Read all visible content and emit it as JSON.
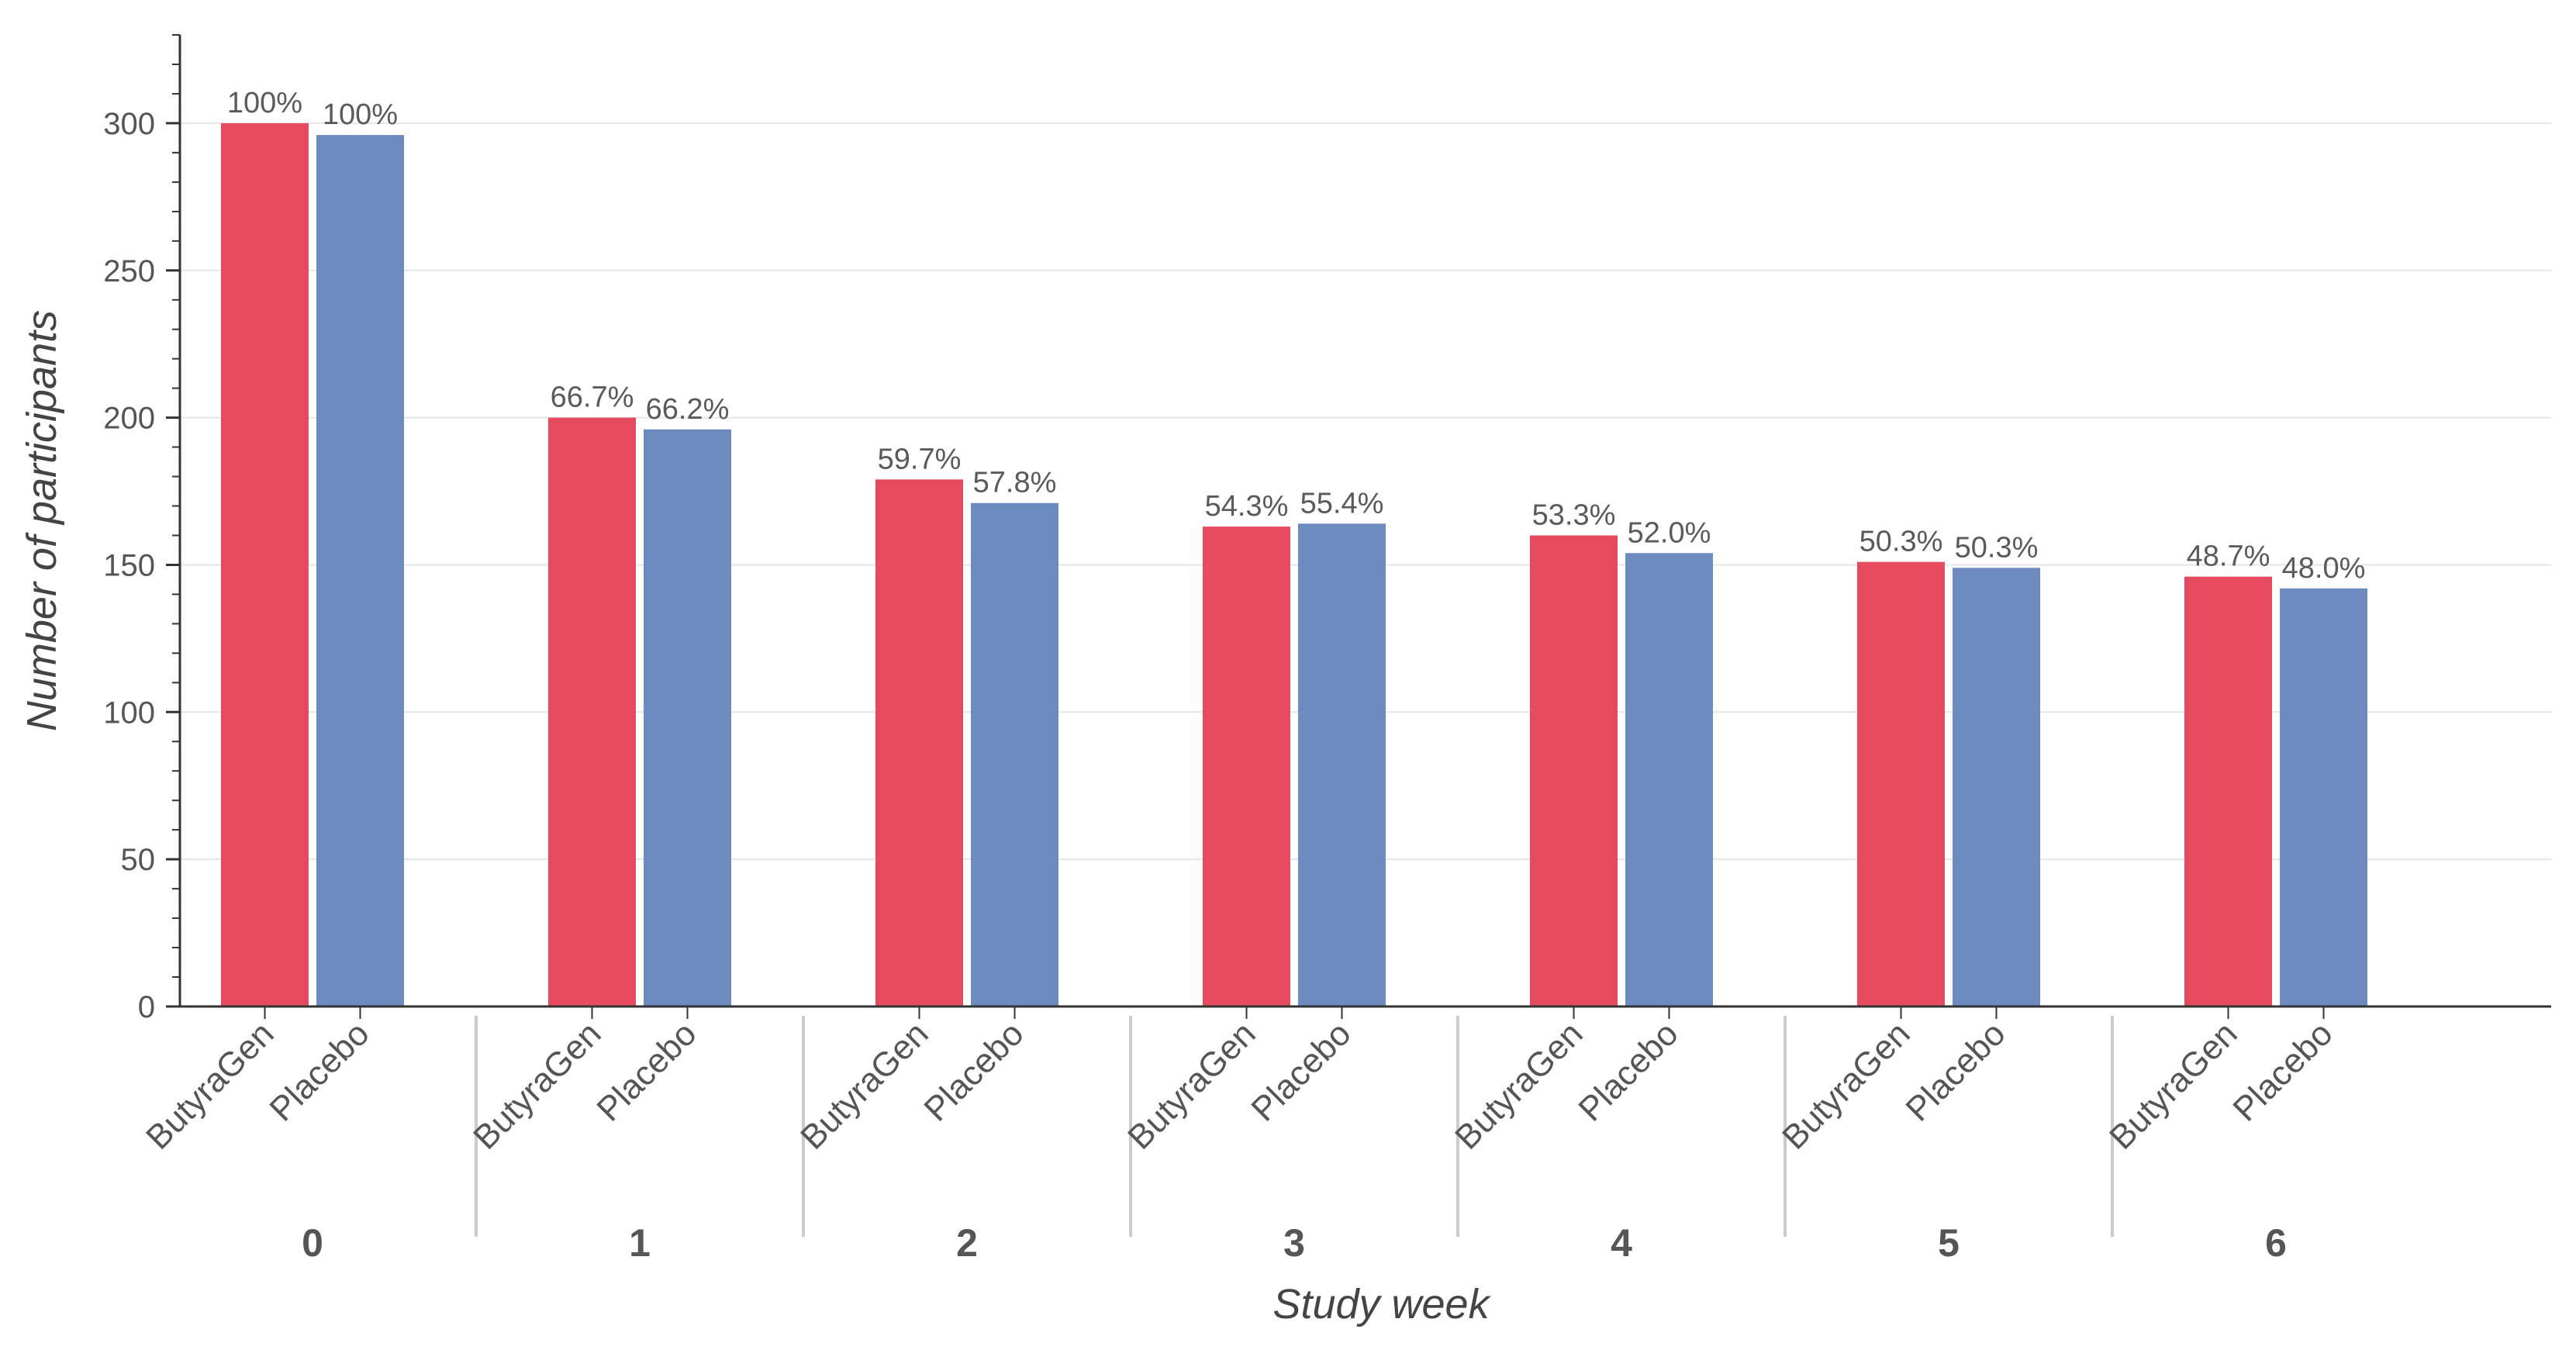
{
  "chart_data": {
    "type": "bar",
    "title": "",
    "xlabel": "Study week",
    "ylabel": "Number of participants",
    "ylim": [
      0,
      330
    ],
    "yticks": [
      0,
      50,
      100,
      150,
      200,
      250,
      300
    ],
    "grid": true,
    "groups": [
      "0",
      "1",
      "2",
      "3",
      "4",
      "5",
      "6"
    ],
    "series": [
      {
        "name": "ButyraGen",
        "color": "#e64a5f",
        "values": [
          300,
          200,
          179,
          163,
          160,
          151,
          146
        ],
        "labels": [
          "100%",
          "66.7%",
          "59.7%",
          "54.3%",
          "53.3%",
          "50.3%",
          "48.7%"
        ]
      },
      {
        "name": "Placebo",
        "color": "#6e8bbf",
        "values": [
          296,
          196,
          171,
          164,
          154,
          149,
          142
        ],
        "labels": [
          "100%",
          "66.2%",
          "57.8%",
          "55.4%",
          "52.0%",
          "50.3%",
          "48.0%"
        ]
      }
    ]
  }
}
